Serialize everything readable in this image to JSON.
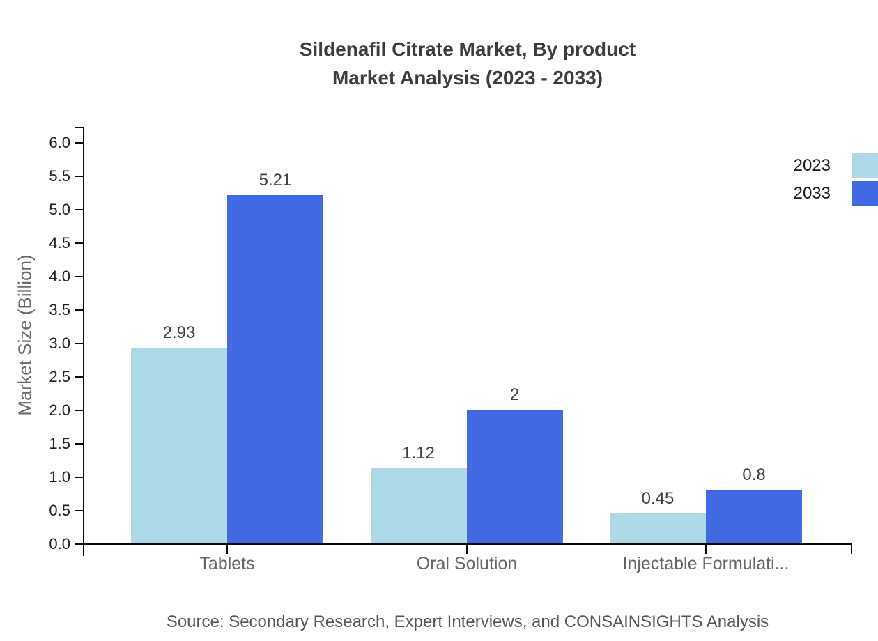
{
  "chart_data": {
    "type": "bar",
    "title": "Sildenafil Citrate Market, By product Market Analysis (2023 - 2033)",
    "title_line1": "Sildenafil Citrate Market, By product",
    "title_line2": "Market Analysis (2023 - 2033)",
    "ylabel": "Market Size (Billion)",
    "xlabel": "",
    "categories": [
      "Tablets",
      "Oral Solution",
      "Injectable Formulati..."
    ],
    "series": [
      {
        "name": "2023",
        "color": "#add8e6",
        "values": [
          2.93,
          1.12,
          0.45
        ]
      },
      {
        "name": "2033",
        "color": "#4169e1",
        "values": [
          5.21,
          2,
          0.8
        ]
      }
    ],
    "ylim": [
      0,
      6
    ],
    "ytick_step": 0.5,
    "grid": false,
    "legend_position": "top-right",
    "source": "Source: Secondary Research, Expert Interviews, and CONSAINSIGHTS Analysis"
  }
}
